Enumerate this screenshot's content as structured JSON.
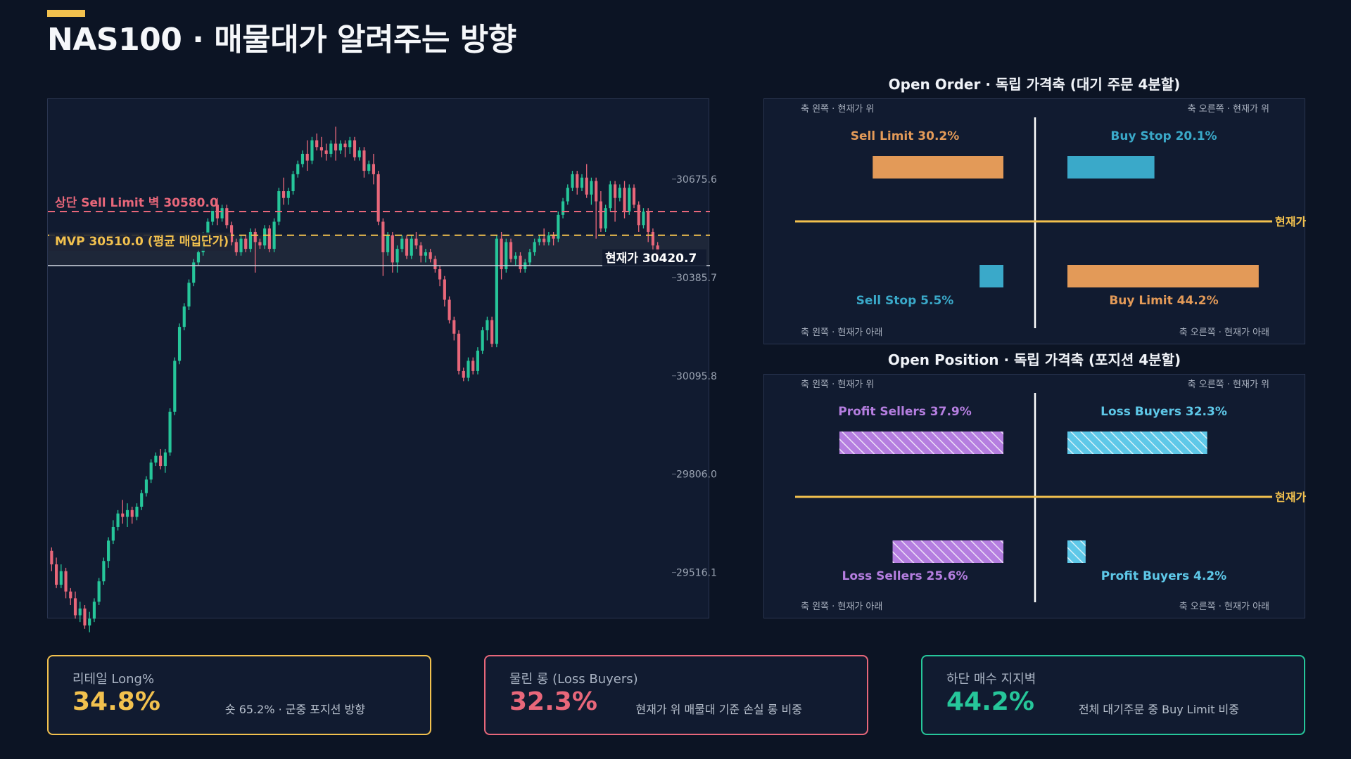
{
  "title": "NAS100 · 매물대가 알려주는 방향",
  "colors": {
    "up": "#26c69a",
    "down": "#e8677a",
    "mvp": "#f2c14e",
    "sell_limit": "#e8677a",
    "orange": "#e39a58",
    "blue": "#3aa9c9",
    "purple": "#b57ee0",
    "lightblue": "#5ec8e8",
    "current": "#c8ced8"
  },
  "chart_data": [
    {
      "type": "candlestick",
      "y_ticks": [
        "30675.6",
        "30385.7",
        "30095.8",
        "29806.0",
        "29516.1"
      ],
      "ylim": [
        29420,
        30870
      ],
      "lines": {
        "sell_limit": {
          "value": 30580.0,
          "label": "상단 Sell Limit 벽 30580.0"
        },
        "mvp": {
          "value": 30510.0,
          "label": "MVP 30510.0 (평균 매입단가)"
        },
        "current": {
          "value": 30420.7,
          "label": "현재가 30420.7"
        }
      },
      "candles": [
        [
          29580,
          29590,
          29520,
          29540
        ],
        [
          29540,
          29560,
          29470,
          29480
        ],
        [
          29480,
          29540,
          29470,
          29520
        ],
        [
          29520,
          29530,
          29440,
          29460
        ],
        [
          29460,
          29470,
          29420,
          29440
        ],
        [
          29440,
          29460,
          29380,
          29390
        ],
        [
          29390,
          29430,
          29370,
          29410
        ],
        [
          29410,
          29420,
          29350,
          29360
        ],
        [
          29360,
          29400,
          29340,
          29380
        ],
        [
          29380,
          29440,
          29370,
          29430
        ],
        [
          29430,
          29500,
          29420,
          29490
        ],
        [
          29490,
          29560,
          29480,
          29550
        ],
        [
          29550,
          29620,
          29530,
          29610
        ],
        [
          29610,
          29670,
          29600,
          29650
        ],
        [
          29650,
          29700,
          29640,
          29690
        ],
        [
          29690,
          29730,
          29660,
          29680
        ],
        [
          29680,
          29720,
          29650,
          29700
        ],
        [
          29700,
          29710,
          29660,
          29680
        ],
        [
          29680,
          29720,
          29670,
          29710
        ],
        [
          29710,
          29760,
          29700,
          29750
        ],
        [
          29750,
          29800,
          29740,
          29790
        ],
        [
          29790,
          29850,
          29780,
          29840
        ],
        [
          29840,
          29870,
          29830,
          29860
        ],
        [
          29860,
          29880,
          29820,
          29830
        ],
        [
          29830,
          29880,
          29810,
          29870
        ],
        [
          29870,
          30000,
          29860,
          29990
        ],
        [
          29990,
          30150,
          29980,
          30140
        ],
        [
          30140,
          30250,
          30130,
          30240
        ],
        [
          30240,
          30310,
          30230,
          30300
        ],
        [
          30300,
          30380,
          30290,
          30370
        ],
        [
          30370,
          30440,
          30360,
          30430
        ],
        [
          30430,
          30470,
          30420,
          30460
        ],
        [
          30460,
          30520,
          30450,
          30510
        ],
        [
          30510,
          30560,
          30500,
          30550
        ],
        [
          30550,
          30610,
          30540,
          30600
        ],
        [
          30600,
          30620,
          30540,
          30560
        ],
        [
          30560,
          30600,
          30550,
          30590
        ],
        [
          30590,
          30600,
          30530,
          30540
        ],
        [
          30540,
          30550,
          30480,
          30490
        ],
        [
          30490,
          30500,
          30450,
          30460
        ],
        [
          30460,
          30510,
          30450,
          30500
        ],
        [
          30500,
          30510,
          30460,
          30470
        ],
        [
          30470,
          30530,
          30460,
          30520
        ],
        [
          30520,
          30530,
          30400,
          30490
        ],
        [
          30490,
          30500,
          30470,
          30480
        ],
        [
          30480,
          30540,
          30470,
          30530
        ],
        [
          30530,
          30540,
          30460,
          30470
        ],
        [
          30470,
          30560,
          30460,
          30550
        ],
        [
          30550,
          30650,
          30540,
          30640
        ],
        [
          30640,
          30680,
          30600,
          30620
        ],
        [
          30620,
          30650,
          30600,
          30640
        ],
        [
          30640,
          30700,
          30630,
          30690
        ],
        [
          30690,
          30730,
          30680,
          30720
        ],
        [
          30720,
          30760,
          30710,
          30750
        ],
        [
          30750,
          30790,
          30700,
          30730
        ],
        [
          30730,
          30800,
          30720,
          30790
        ],
        [
          30790,
          30810,
          30760,
          30770
        ],
        [
          30770,
          30800,
          30740,
          30760
        ],
        [
          30760,
          30780,
          30730,
          30750
        ],
        [
          30750,
          30790,
          30740,
          30780
        ],
        [
          30780,
          30830,
          30730,
          30760
        ],
        [
          30760,
          30790,
          30750,
          30780
        ],
        [
          30780,
          30790,
          30740,
          30770
        ],
        [
          30770,
          30800,
          30750,
          30790
        ],
        [
          30790,
          30800,
          30730,
          30740
        ],
        [
          30740,
          30770,
          30730,
          30760
        ],
        [
          30760,
          30770,
          30680,
          30700
        ],
        [
          30700,
          30730,
          30690,
          30720
        ],
        [
          30720,
          30750,
          30660,
          30690
        ],
        [
          30690,
          30700,
          30540,
          30550
        ],
        [
          30550,
          30560,
          30390,
          30460
        ],
        [
          30460,
          30520,
          30450,
          30510
        ],
        [
          30510,
          30520,
          30400,
          30430
        ],
        [
          30430,
          30480,
          30400,
          30470
        ],
        [
          30470,
          30510,
          30460,
          30500
        ],
        [
          30500,
          30510,
          30440,
          30450
        ],
        [
          30450,
          30510,
          30440,
          30500
        ],
        [
          30500,
          30520,
          30470,
          30480
        ],
        [
          30480,
          30490,
          30430,
          30450
        ],
        [
          30450,
          30470,
          30430,
          30460
        ],
        [
          30460,
          30470,
          30430,
          30440
        ],
        [
          30440,
          30450,
          30400,
          30410
        ],
        [
          30410,
          30420,
          30360,
          30380
        ],
        [
          30380,
          30390,
          30300,
          30320
        ],
        [
          30320,
          30330,
          30250,
          30260
        ],
        [
          30260,
          30270,
          30200,
          30220
        ],
        [
          30220,
          30230,
          30100,
          30110
        ],
        [
          30110,
          30120,
          30080,
          30090
        ],
        [
          30090,
          30150,
          30080,
          30140
        ],
        [
          30140,
          30150,
          30100,
          30110
        ],
        [
          30110,
          30180,
          30100,
          30170
        ],
        [
          30170,
          30240,
          30160,
          30230
        ],
        [
          30230,
          30270,
          30200,
          30260
        ],
        [
          30260,
          30270,
          30180,
          30190
        ],
        [
          30190,
          30510,
          30180,
          30500
        ],
        [
          30500,
          30520,
          30380,
          30410
        ],
        [
          30410,
          30500,
          30400,
          30490
        ],
        [
          30490,
          30500,
          30430,
          30440
        ],
        [
          30440,
          30460,
          30420,
          30450
        ],
        [
          30450,
          30460,
          30400,
          30410
        ],
        [
          30410,
          30440,
          30400,
          30430
        ],
        [
          30430,
          30470,
          30420,
          30460
        ],
        [
          30460,
          30500,
          30450,
          30490
        ],
        [
          30490,
          30510,
          30480,
          30500
        ],
        [
          30500,
          30530,
          30480,
          30490
        ],
        [
          30490,
          30520,
          30480,
          30510
        ],
        [
          30510,
          30520,
          30480,
          30500
        ],
        [
          30500,
          30580,
          30490,
          30570
        ],
        [
          30570,
          30620,
          30560,
          30610
        ],
        [
          30610,
          30660,
          30600,
          30650
        ],
        [
          30650,
          30700,
          30640,
          30690
        ],
        [
          30690,
          30700,
          30630,
          30650
        ],
        [
          30650,
          30690,
          30640,
          30680
        ],
        [
          30680,
          30720,
          30620,
          30630
        ],
        [
          30630,
          30680,
          30600,
          30670
        ],
        [
          30670,
          30680,
          30500,
          30610
        ],
        [
          30610,
          30640,
          30520,
          30530
        ],
        [
          30530,
          30600,
          30520,
          30590
        ],
        [
          30590,
          30670,
          30580,
          30660
        ],
        [
          30660,
          30670,
          30550,
          30620
        ],
        [
          30620,
          30660,
          30610,
          30650
        ],
        [
          30650,
          30670,
          30560,
          30580
        ],
        [
          30580,
          30660,
          30570,
          30650
        ],
        [
          30650,
          30660,
          30590,
          30600
        ],
        [
          30600,
          30610,
          30520,
          30540
        ],
        [
          30540,
          30590,
          30530,
          30580
        ],
        [
          30580,
          30590,
          30490,
          30520
        ],
        [
          30520,
          30530,
          30460,
          30480
        ],
        [
          30480,
          30490,
          30440,
          30450
        ]
      ]
    },
    {
      "type": "bar",
      "title": "Open Order · 독립 가격축 (대기 주문 4분할)",
      "axis_labels": {
        "left_top": "축 왼쪽 · 현재가 위",
        "right_top": "축 오른쪽 · 현재가 위",
        "left_bottom": "축 왼쪽 · 현재가 아래",
        "right_bottom": "축 오른쪽 · 현재가 아래"
      },
      "current_label": "현재가",
      "quadrants": [
        {
          "pos": "left-top",
          "label": "Sell Limit 30.2%",
          "value": 30.2,
          "color": "#e39a58",
          "hatch": false
        },
        {
          "pos": "right-top",
          "label": "Buy Stop 20.1%",
          "value": 20.1,
          "color": "#3aa9c9",
          "hatch": false
        },
        {
          "pos": "left-bottom",
          "label": "Sell Stop 5.5%",
          "value": 5.5,
          "color": "#3aa9c9",
          "hatch": false
        },
        {
          "pos": "right-bottom",
          "label": "Buy Limit 44.2%",
          "value": 44.2,
          "color": "#e39a58",
          "hatch": false
        }
      ]
    },
    {
      "type": "bar",
      "title": "Open Position · 독립 가격축 (포지션 4분할)",
      "axis_labels": {
        "left_top": "축 왼쪽 · 현재가 위",
        "right_top": "축 오른쪽 · 현재가 위",
        "left_bottom": "축 왼쪽 · 현재가 아래",
        "right_bottom": "축 오른쪽 · 현재가 아래"
      },
      "current_label": "현재가",
      "quadrants": [
        {
          "pos": "left-top",
          "label": "Profit Sellers 37.9%",
          "value": 37.9,
          "color": "#b57ee0",
          "hatch": true
        },
        {
          "pos": "right-top",
          "label": "Loss Buyers 32.3%",
          "value": 32.3,
          "color": "#5ec8e8",
          "hatch": true
        },
        {
          "pos": "left-bottom",
          "label": "Loss Sellers 25.6%",
          "value": 25.6,
          "color": "#b57ee0",
          "hatch": true
        },
        {
          "pos": "right-bottom",
          "label": "Profit Buyers 4.2%",
          "value": 4.2,
          "color": "#5ec8e8",
          "hatch": true
        }
      ]
    }
  ],
  "cards": [
    {
      "label": "리테일 Long%",
      "value": "34.8%",
      "note": "숏 65.2% · 군중 포지션 방향",
      "color": "#f2c14e"
    },
    {
      "label": "물린 롱 (Loss Buyers)",
      "value": "32.3%",
      "note": "현재가 위 매물대 기준 손실 롱 비중",
      "color": "#e8677a"
    },
    {
      "label": "하단 매수 지지벽",
      "value": "44.2%",
      "note": "전체 대기주문 중 Buy Limit 비중",
      "color": "#26c69a"
    }
  ]
}
